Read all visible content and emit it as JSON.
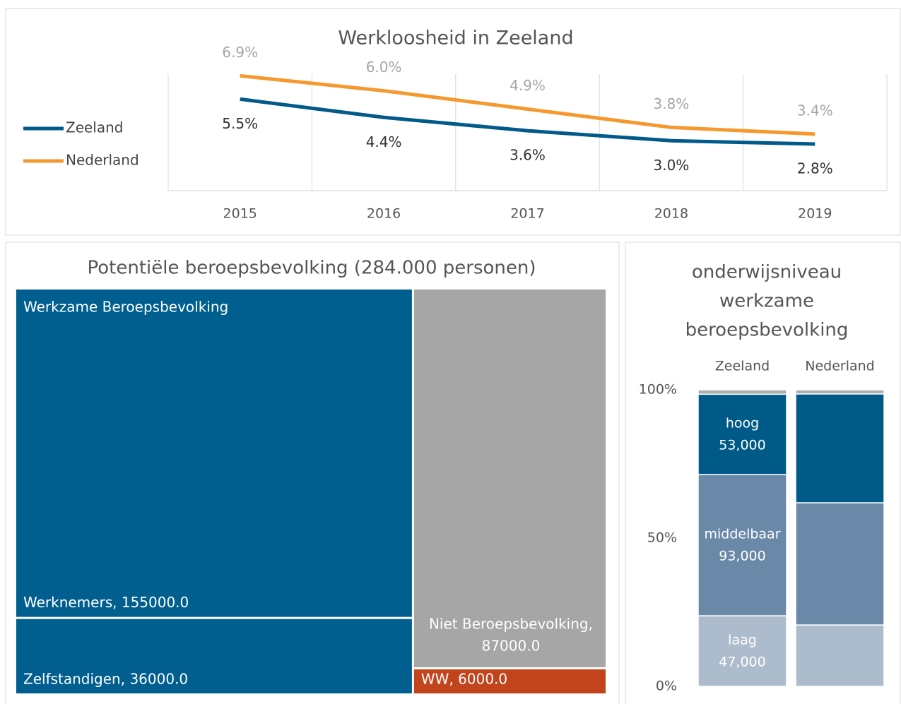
{
  "chart_data": [
    {
      "type": "line",
      "title": "Werkloosheid in Zeeland",
      "categories": [
        "2015",
        "2016",
        "2017",
        "2018",
        "2019"
      ],
      "ylim": [
        0,
        7
      ],
      "grid": true,
      "legend": "left",
      "series": [
        {
          "name": "Zeeland",
          "color": "#015a8a",
          "values": [
            5.5,
            4.4,
            3.6,
            3.0,
            2.8
          ],
          "value_labels": [
            "5.5%",
            "4.4%",
            "3.6%",
            "3.0%",
            "2.8%"
          ]
        },
        {
          "name": "Nederland",
          "color": "#f5992f",
          "values": [
            6.9,
            6.0,
            4.9,
            3.8,
            3.4
          ],
          "value_labels": [
            "6.9%",
            "6.0%",
            "4.9%",
            "3.8%",
            "3.4%"
          ]
        }
      ]
    },
    {
      "type": "treemap",
      "title": "Potentiële beroepsbevolking (284.000 personen)",
      "groups": [
        {
          "name": "Werkzame Beroepsbevolking",
          "items": [
            {
              "label": [
                "Werknemers, 155000.0"
              ],
              "value": 155000,
              "color": "#005f8f"
            },
            {
              "label": [
                "Zelfstandigen, 36000.0"
              ],
              "value": 36000,
              "color": "#005f8f"
            }
          ]
        },
        {
          "items": [
            {
              "label": [
                "Niet Beroepsbevolking,",
                "87000.0"
              ],
              "value": 87000,
              "color": "#a6a6a6"
            },
            {
              "label": [
                "WW, 6000.0"
              ],
              "value": 6000,
              "color": "#c1441d"
            }
          ]
        }
      ]
    },
    {
      "type": "stacked_bar",
      "title": [
        "onderwijsniveau",
        "werkzame",
        "beroepsbevolking"
      ],
      "categories": [
        "Zeeland",
        "Nederland"
      ],
      "ylim": [
        0,
        100
      ],
      "yticks": [
        {
          "value": 0,
          "label": "0%"
        },
        {
          "value": 50,
          "label": "50%"
        },
        {
          "value": 100,
          "label": "100%"
        }
      ],
      "series": [
        {
          "name": "laag",
          "color": "#adbccc",
          "values": [
            23.8,
            20.7
          ],
          "labels": [
            "47,000",
            null
          ]
        },
        {
          "name": "middelbaar",
          "color": "#6a88a8",
          "values": [
            47.6,
            41.2
          ],
          "labels": [
            "93,000",
            null
          ]
        },
        {
          "name": "hoog",
          "color": "#005a87",
          "values": [
            27.1,
            36.7
          ],
          "labels": [
            "53,000",
            null
          ]
        },
        {
          "color": "#b0b0b0",
          "values": [
            1.5,
            1.4
          ]
        }
      ]
    }
  ]
}
